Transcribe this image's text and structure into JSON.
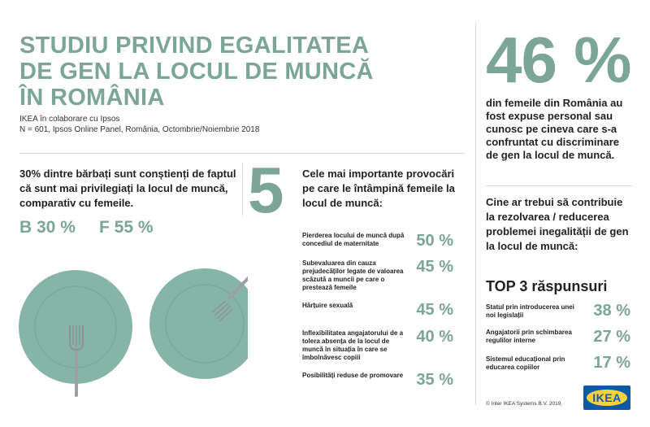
{
  "header": {
    "title_lines": [
      "STUDIU PRIVIND EGALITATEA",
      "DE GEN LA LOCUL DE MUNCĂ",
      "ÎN ROMÂNIA"
    ],
    "subtitle_1": "IKEA în colaborare cu Ipsos",
    "subtitle_2": "N = 601, Ipsos Online Panel, România, Octombrie/Noiembrie 2018"
  },
  "stat46": {
    "value": "46 %",
    "description": "din femeile din România au fost expuse personal sau cunosc pe cineva care s-a confruntat cu discriminare de gen la locul de muncă."
  },
  "left": {
    "headline": "30% dintre bărbați sunt conștienți de faptul că sunt mai privilegiați la locul de muncă, comparativ cu femeile.",
    "men_label": "B 30 %",
    "women_label": "F 55 %",
    "men_value": 30,
    "women_value": 55
  },
  "middle": {
    "number": "5",
    "headline": "Cele mai importante provocări pe care le întâmpină femeile la locul de muncă:",
    "items": [
      {
        "label": "Pierderea locului de muncă după concediul de maternitate",
        "value": "50 %"
      },
      {
        "label": "Subevaluarea din cauza prejudecăților legate de valoarea scăzută a muncii pe care o prestează femeile",
        "value": "45 %"
      },
      {
        "label": "Hărțuire sexuală",
        "value": "45 %"
      },
      {
        "label": "Inflexibilitatea angajatorului de a tolera absența de la locul de muncă în situația în care se îmbolnăvesc copiii",
        "value": "40 %"
      },
      {
        "label": "Posibilități reduse de promovare",
        "value": "35 %"
      }
    ]
  },
  "right": {
    "headline": "Cine ar trebui să contribuie la rezolvarea / reducerea problemei inegalității de gen la locul de muncă:",
    "top3_title": "TOP 3 răspunsuri",
    "items": [
      {
        "label": "Statul prin introducerea unei noi legislații",
        "value": "38 %"
      },
      {
        "label": "Angajatorii prin schimbarea regulilor interne",
        "value": "27 %"
      },
      {
        "label": "Sistemul educațional prin educarea copiilor",
        "value": "17 %"
      }
    ]
  },
  "footer": {
    "copyright": "© Inter IKEA Systems B.V. 2019.",
    "logo_text": "IKEA"
  },
  "colors": {
    "accent": "#7aa597",
    "plate": "#86b5a8",
    "ikea_blue": "#0b5aa6",
    "ikea_yellow": "#ffd23d"
  }
}
